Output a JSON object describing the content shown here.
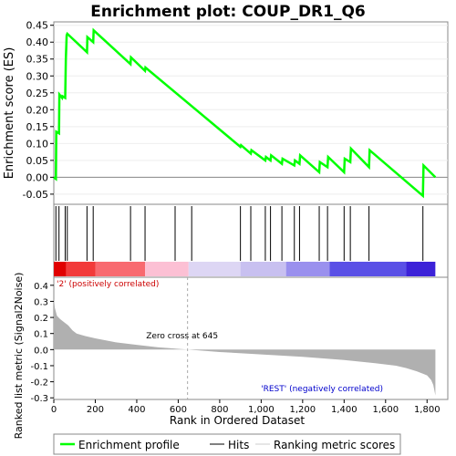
{
  "chart_data": {
    "type": "line",
    "title": "Enrichment plot: COUP_DR1_Q6",
    "top_panel": {
      "ylabel": "Enrichment score (ES)",
      "ylim": [
        -0.08,
        0.46
      ],
      "yticks": [
        "0.45",
        "0.40",
        "0.35",
        "0.30",
        "0.25",
        "0.20",
        "0.15",
        "0.10",
        "0.05",
        "0.00",
        "-0.05"
      ],
      "ytick_values": [
        0.45,
        0.4,
        0.35,
        0.3,
        0.25,
        0.2,
        0.15,
        0.1,
        0.05,
        0.0,
        -0.05
      ],
      "series": [
        {
          "name": "Enrichment profile",
          "color": "#00ff00",
          "x": [
            0,
            10,
            12,
            25,
            27,
            40,
            42,
            55,
            58,
            62,
            65,
            160,
            162,
            190,
            192,
            370,
            372,
            440,
            442,
            900,
            903,
            950,
            953,
            1020,
            1023,
            1045,
            1048,
            1100,
            1103,
            1160,
            1163,
            1185,
            1188,
            1280,
            1283,
            1320,
            1323,
            1400,
            1403,
            1430,
            1433,
            1520,
            1523,
            1780,
            1783,
            1840
          ],
          "y": [
            0.0,
            -0.005,
            0.135,
            0.13,
            0.245,
            0.235,
            0.24,
            0.235,
            0.35,
            0.42,
            0.425,
            0.37,
            0.415,
            0.4,
            0.435,
            0.335,
            0.355,
            0.315,
            0.325,
            0.09,
            0.095,
            0.07,
            0.08,
            0.05,
            0.06,
            0.05,
            0.065,
            0.04,
            0.055,
            0.035,
            0.05,
            0.04,
            0.065,
            0.015,
            0.045,
            0.03,
            0.06,
            0.015,
            0.055,
            0.045,
            0.085,
            0.03,
            0.08,
            -0.055,
            0.035,
            0.0
          ]
        }
      ]
    },
    "hits_panel": {
      "hits": [
        10,
        25,
        55,
        65,
        160,
        190,
        370,
        440,
        585,
        665,
        900,
        950,
        1020,
        1045,
        1100,
        1160,
        1185,
        1280,
        1320,
        1400,
        1430,
        1520,
        1780
      ]
    },
    "bottom_panel": {
      "ylabel": "Ranked list metric (Signal2Noise)",
      "ylim": [
        -0.31,
        0.45
      ],
      "yticks": [
        "0.4",
        "0.3",
        "0.2",
        "0.1",
        "0.0",
        "-0.1",
        "-0.2",
        "-0.3"
      ],
      "ytick_values": [
        0.4,
        0.3,
        0.2,
        0.1,
        0.0,
        -0.1,
        -0.2,
        -0.3
      ],
      "xlabel": "Rank in Ordered Dataset",
      "xlim": [
        0,
        1900
      ],
      "xticks": [
        "0",
        "200",
        "400",
        "600",
        "800",
        "1,000",
        "1,200",
        "1,400",
        "1,600",
        "1,800"
      ],
      "xtick_values": [
        0,
        200,
        400,
        600,
        800,
        1000,
        1200,
        1400,
        1600,
        1800
      ],
      "zero_cross_label": "Zero cross at 645",
      "zero_cross": 645,
      "pos_label": "'2' (positively correlated)",
      "neg_label": "'REST' (negatively correlated)",
      "metric_x": [
        0,
        5,
        15,
        30,
        50,
        70,
        90,
        110,
        150,
        200,
        300,
        400,
        500,
        600,
        645,
        800,
        1000,
        1200,
        1400,
        1550,
        1650,
        1700,
        1750,
        1780,
        1800,
        1820,
        1830,
        1840
      ],
      "metric_y": [
        0.32,
        0.26,
        0.21,
        0.19,
        0.17,
        0.15,
        0.12,
        0.1,
        0.085,
        0.07,
        0.045,
        0.03,
        0.015,
        0.005,
        0.0,
        -0.015,
        -0.03,
        -0.045,
        -0.065,
        -0.085,
        -0.1,
        -0.115,
        -0.135,
        -0.15,
        -0.16,
        -0.19,
        -0.22,
        -0.285
      ]
    },
    "legend": {
      "placement": "bottom",
      "entries": [
        "Enrichment profile",
        "Hits",
        "Ranking metric scores"
      ]
    },
    "colors": {
      "profile": "#00ff00",
      "hits": "#000000",
      "metric_fill": "#b0b0b0",
      "pos_text": "#cc0000",
      "neg_text": "#0000cc"
    },
    "heat_colors": [
      "#e00000",
      "#f23a3a",
      "#f86a70",
      "#fcc0d4",
      "#ddd6f4",
      "#c8c0f0",
      "#9a90ee",
      "#5a50e6",
      "#3c22d8",
      "#2a00c4"
    ],
    "heat_stops": [
      0,
      60,
      200,
      440,
      650,
      900,
      1120,
      1330,
      1700,
      1840
    ]
  }
}
